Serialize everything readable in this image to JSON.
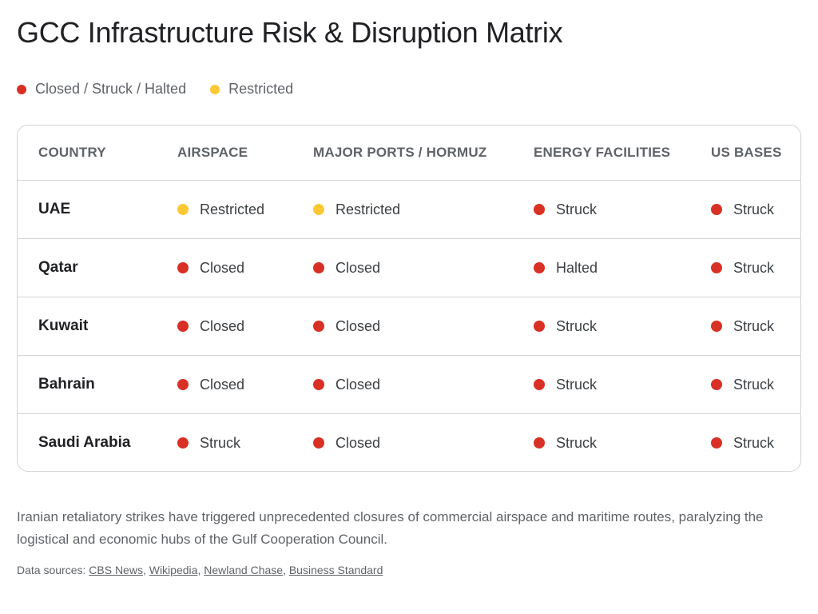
{
  "title": "GCC Infrastructure Risk & Disruption Matrix",
  "colors": {
    "red": "#d93025",
    "yellow": "#fcc934"
  },
  "legend": [
    {
      "label": "Closed / Struck / Halted",
      "color": "red"
    },
    {
      "label": "Restricted",
      "color": "yellow"
    }
  ],
  "table": {
    "headers": [
      "COUNTRY",
      "AIRSPACE",
      "MAJOR PORTS / HORMUZ",
      "ENERGY FACILITIES",
      "US BASES"
    ],
    "rows": [
      {
        "country": "UAE",
        "cells": [
          {
            "v": "Restricted",
            "s": "yellow"
          },
          {
            "v": "Restricted",
            "s": "yellow"
          },
          {
            "v": "Struck",
            "s": "red"
          },
          {
            "v": "Struck",
            "s": "red"
          }
        ]
      },
      {
        "country": "Qatar",
        "cells": [
          {
            "v": "Closed",
            "s": "red"
          },
          {
            "v": "Closed",
            "s": "red"
          },
          {
            "v": "Halted",
            "s": "red"
          },
          {
            "v": "Struck",
            "s": "red"
          }
        ]
      },
      {
        "country": "Kuwait",
        "cells": [
          {
            "v": "Closed",
            "s": "red"
          },
          {
            "v": "Closed",
            "s": "red"
          },
          {
            "v": "Struck",
            "s": "red"
          },
          {
            "v": "Struck",
            "s": "red"
          }
        ]
      },
      {
        "country": "Bahrain",
        "cells": [
          {
            "v": "Closed",
            "s": "red"
          },
          {
            "v": "Closed",
            "s": "red"
          },
          {
            "v": "Struck",
            "s": "red"
          },
          {
            "v": "Struck",
            "s": "red"
          }
        ]
      },
      {
        "country": "Saudi Arabia",
        "cells": [
          {
            "v": "Struck",
            "s": "red"
          },
          {
            "v": "Closed",
            "s": "red"
          },
          {
            "v": "Struck",
            "s": "red"
          },
          {
            "v": "Struck",
            "s": "red"
          }
        ]
      }
    ]
  },
  "description": "Iranian retaliatory strikes have triggered unprecedented closures of commercial airspace and maritime routes, paralyzing the logistical and economic hubs of the Gulf Cooperation Council.",
  "sources": {
    "label": "Data sources:",
    "links": [
      "CBS News",
      "Wikipedia",
      "Newland Chase",
      "Business Standard"
    ]
  }
}
